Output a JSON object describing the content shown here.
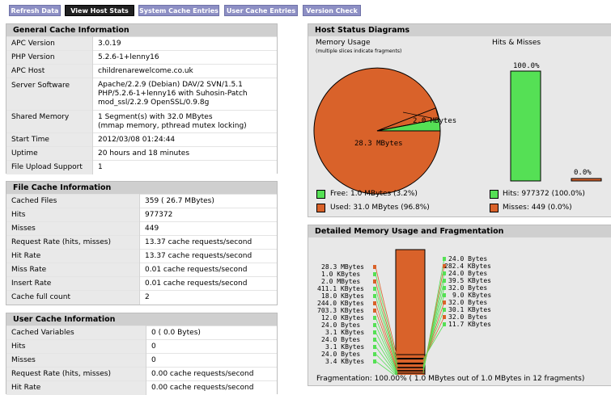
{
  "nav": {
    "refresh": "Refresh Data",
    "host_stats": "View Host Stats",
    "system_cache": "System Cache Entries",
    "user_cache": "User Cache Entries",
    "version_check": "Version Check"
  },
  "general": {
    "title": "General Cache Information",
    "rows": [
      {
        "k": "APC Version",
        "v": "3.0.19"
      },
      {
        "k": "PHP Version",
        "v": "5.2.6-1+lenny16"
      },
      {
        "k": "APC Host",
        "v": "childrenarewelcome.co.uk"
      },
      {
        "k": "Server Software",
        "v1": "Apache/2.2.9 (Debian) DAV/2 SVN/1.5.1",
        "v2": "PHP/5.2.6-1+lenny16 with Suhosin-Patch",
        "v3": "mod_ssl/2.2.9 OpenSSL/0.9.8g"
      },
      {
        "k": "Shared Memory",
        "v1": "1 Segment(s) with 32.0 MBytes",
        "v2": "(mmap memory, pthread mutex locking)"
      },
      {
        "k": "Start Time",
        "v": "2012/03/08 01:24:44"
      },
      {
        "k": "Uptime",
        "v": "20 hours and 18 minutes"
      },
      {
        "k": "File Upload Support",
        "v": "1"
      }
    ]
  },
  "file_cache": {
    "title": "File Cache Information",
    "rows": [
      {
        "k": "Cached Files",
        "v": "359 ( 26.7 MBytes)"
      },
      {
        "k": "Hits",
        "v": "977372"
      },
      {
        "k": "Misses",
        "v": "449"
      },
      {
        "k": "Request Rate (hits, misses)",
        "v": "13.37 cache requests/second"
      },
      {
        "k": "Hit Rate",
        "v": "13.37 cache requests/second"
      },
      {
        "k": "Miss Rate",
        "v": "0.01 cache requests/second"
      },
      {
        "k": "Insert Rate",
        "v": "0.01 cache requests/second"
      },
      {
        "k": "Cache full count",
        "v": "2"
      }
    ]
  },
  "user_cache": {
    "title": "User Cache Information",
    "rows": [
      {
        "k": "Cached Variables",
        "v": "0 ( 0.0 Bytes)"
      },
      {
        "k": "Hits",
        "v": "0"
      },
      {
        "k": "Misses",
        "v": "0"
      },
      {
        "k": "Request Rate (hits, misses)",
        "v": "0.00 cache requests/second"
      },
      {
        "k": "Hit Rate",
        "v": "0.00 cache requests/second"
      }
    ]
  },
  "host_status": {
    "title": "Host Status Diagrams",
    "memory_title": "Memory Usage",
    "memory_subtitle": "(multiple slices indicate fragments)",
    "hits_title": "Hits & Misses",
    "pie_label_big": "28.3 MBytes",
    "pie_label_small": "2.0 MBytes",
    "hits_pct": "100.0%",
    "misses_pct": "0.0%",
    "legend_free": "Free: 1.0 MBytes (3.2%)",
    "legend_used": "Used: 31.0 MBytes (96.8%)",
    "legend_hits": "Hits: 977372 (100.0%)",
    "legend_misses": "Misses: 449 (0.0%)"
  },
  "detailed": {
    "title": "Detailed Memory Usage and Fragmentation",
    "left_labels": [
      "28.3 MBytes",
      "1.0 KBytes",
      "2.0 MBytes",
      "411.1 KBytes",
      "18.0 KBytes",
      "244.0 KBytes",
      "703.3 KBytes",
      "12.0 KBytes",
      "24.0 Bytes",
      "3.1 KBytes",
      "24.0 Bytes",
      "3.1 KBytes",
      "24.0 Bytes",
      "3.4 KBytes"
    ],
    "right_labels": [
      "24.0 Bytes",
      "282.4 KBytes",
      "24.0 Bytes",
      "39.5 KBytes",
      "32.0 Bytes",
      "9.0 KBytes",
      "32.0 Bytes",
      "30.1 KBytes",
      "32.0 Bytes",
      "11.7 KBytes"
    ],
    "fragmentation": "Fragmentation: 100.00% ( 1.0 MBytes out of 1.0 MBytes in 12 fragments)"
  },
  "colors": {
    "used": "#d9622a",
    "free": "#55e055",
    "header": "#cfcfcf",
    "nav": "#8d8fc4"
  },
  "chart_data": [
    {
      "type": "pie",
      "title": "Memory Usage",
      "slices": [
        {
          "name": "Used",
          "value": 31.0,
          "unit": "MBytes",
          "pct": 96.8
        },
        {
          "name": "Free",
          "value": 1.0,
          "unit": "MBytes",
          "pct": 3.2
        }
      ]
    },
    {
      "type": "bar",
      "title": "Hits & Misses",
      "categories": [
        "Hits",
        "Misses"
      ],
      "values": [
        100.0,
        0.0
      ],
      "ylim": [
        0,
        100
      ]
    }
  ]
}
